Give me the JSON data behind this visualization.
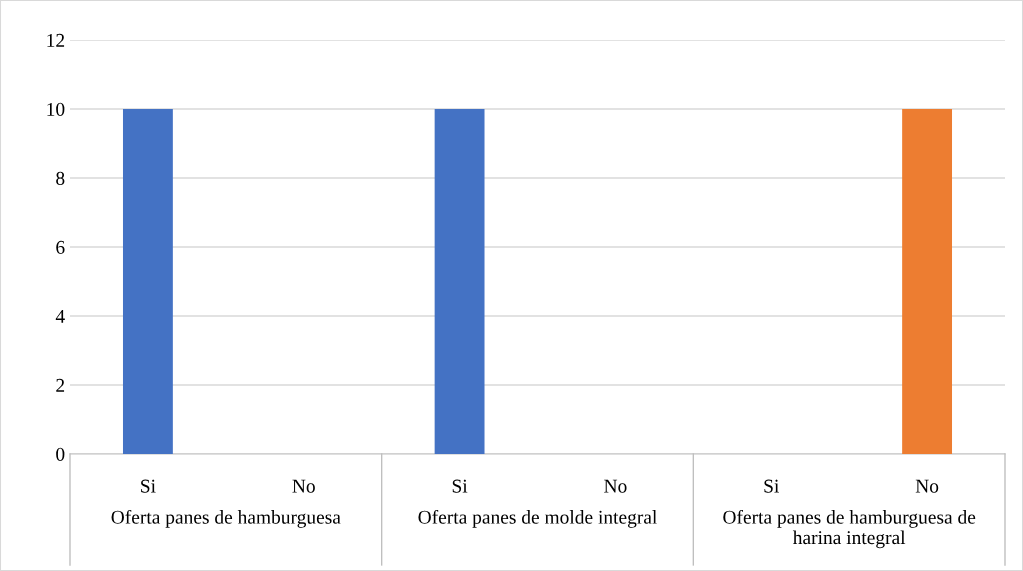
{
  "chart_data": {
    "type": "bar",
    "categories": [
      "Si",
      "No",
      "Si",
      "No",
      "Si",
      "No"
    ],
    "values": [
      10,
      0,
      10,
      0,
      0,
      10
    ],
    "colors": [
      "#4472c4",
      "#ed7d31",
      "#4472c4",
      "#ed7d31",
      "#4472c4",
      "#ed7d31"
    ],
    "annotations": [
      "Oferta panes de hamburguesa",
      "Oferta panes de molde integral",
      "Oferta panes de hamburguesa de harina integral"
    ],
    "ylim": [
      0,
      12
    ],
    "yticks": [
      0,
      2,
      4,
      6,
      8,
      10,
      12
    ],
    "grid": "y",
    "legend": false
  }
}
